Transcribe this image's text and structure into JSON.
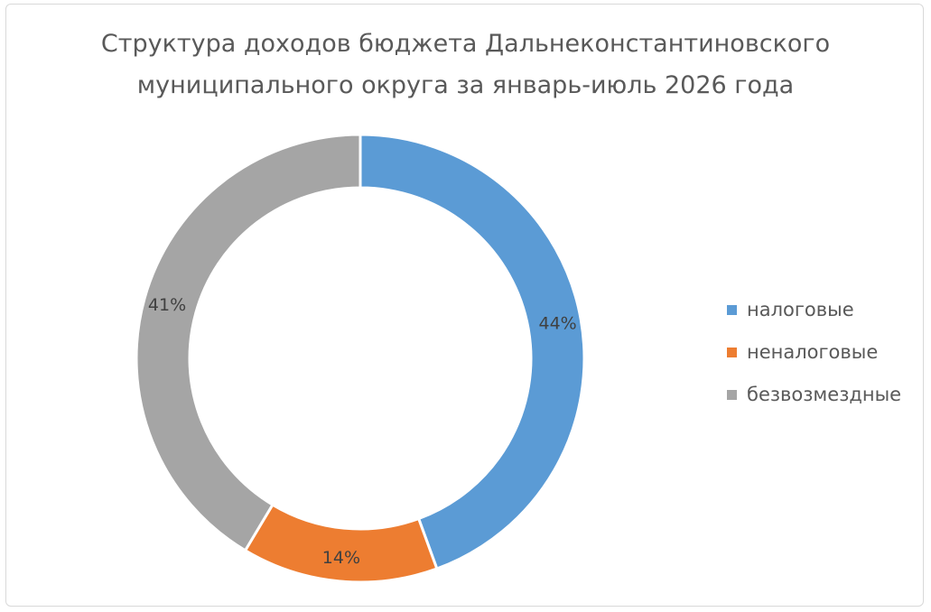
{
  "chart_data": {
    "type": "pie",
    "variant": "donut",
    "title_lines": [
      "Структура доходов бюджета Дальнеконстантиновского",
      "муниципального округа за январь-июль 2026 года"
    ],
    "categories": [
      "налоговые",
      "неналоговые",
      "безвозмездные"
    ],
    "values": [
      44,
      14,
      41
    ],
    "labels": [
      "44%",
      "14%",
      "41%"
    ],
    "colors": [
      "#5b9bd5",
      "#ed7d31",
      "#a5a5a5"
    ],
    "legend_position": "right"
  }
}
